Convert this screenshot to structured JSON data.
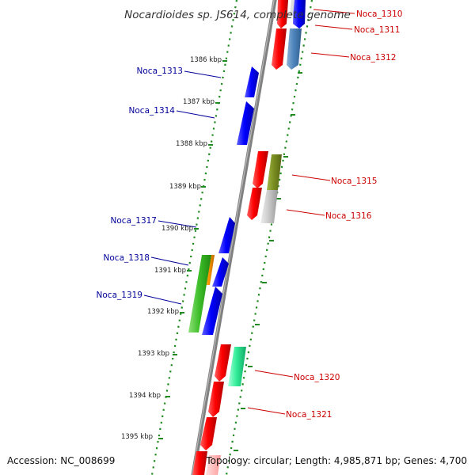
{
  "title": "Nocardioides sp. JS614, complete genome",
  "footer": {
    "accession": "Accession: NC_008699",
    "summary": "Topology: circular; Length: 4,985,871 bp; Genes: 4,700"
  },
  "ticks": [
    {
      "label": "1386 kbp",
      "kbp": 1386
    },
    {
      "label": "1387 kbp",
      "kbp": 1387
    },
    {
      "label": "1388 kbp",
      "kbp": 1388
    },
    {
      "label": "1389 kbp",
      "kbp": 1389
    },
    {
      "label": "1390 kbp",
      "kbp": 1390
    },
    {
      "label": "1391 kbp",
      "kbp": 1391
    },
    {
      "label": "1392 kbp",
      "kbp": 1392
    },
    {
      "label": "1393 kbp",
      "kbp": 1393
    },
    {
      "label": "1394 kbp",
      "kbp": 1394
    },
    {
      "label": "1395 kbp",
      "kbp": 1395
    }
  ],
  "genes": [
    {
      "label": "Noca_1310",
      "strand": "plus",
      "color": "#cc0000"
    },
    {
      "label": "Noca_1311",
      "strand": "plus",
      "color": "#cc0000"
    },
    {
      "label": "Noca_1312",
      "strand": "plus",
      "color": "#cc0000"
    },
    {
      "label": "Noca_1313",
      "strand": "minus",
      "color": "#000099"
    },
    {
      "label": "Noca_1314",
      "strand": "minus",
      "color": "#000099"
    },
    {
      "label": "Noca_1315",
      "strand": "plus",
      "color": "#cc0000"
    },
    {
      "label": "Noca_1316",
      "strand": "plus",
      "color": "#cc0000"
    },
    {
      "label": "Noca_1317",
      "strand": "minus",
      "color": "#000099"
    },
    {
      "label": "Noca_1318",
      "strand": "minus",
      "color": "#000099"
    },
    {
      "label": "Noca_1319",
      "strand": "minus",
      "color": "#000099"
    },
    {
      "label": "Noca_1320",
      "strand": "plus",
      "color": "#cc0000"
    },
    {
      "label": "Noca_1321",
      "strand": "plus",
      "color": "#cc0000"
    }
  ],
  "colors": {
    "backbone": "#808080",
    "dotted_track": "#1f8a1f",
    "tick_label": "#222222"
  }
}
